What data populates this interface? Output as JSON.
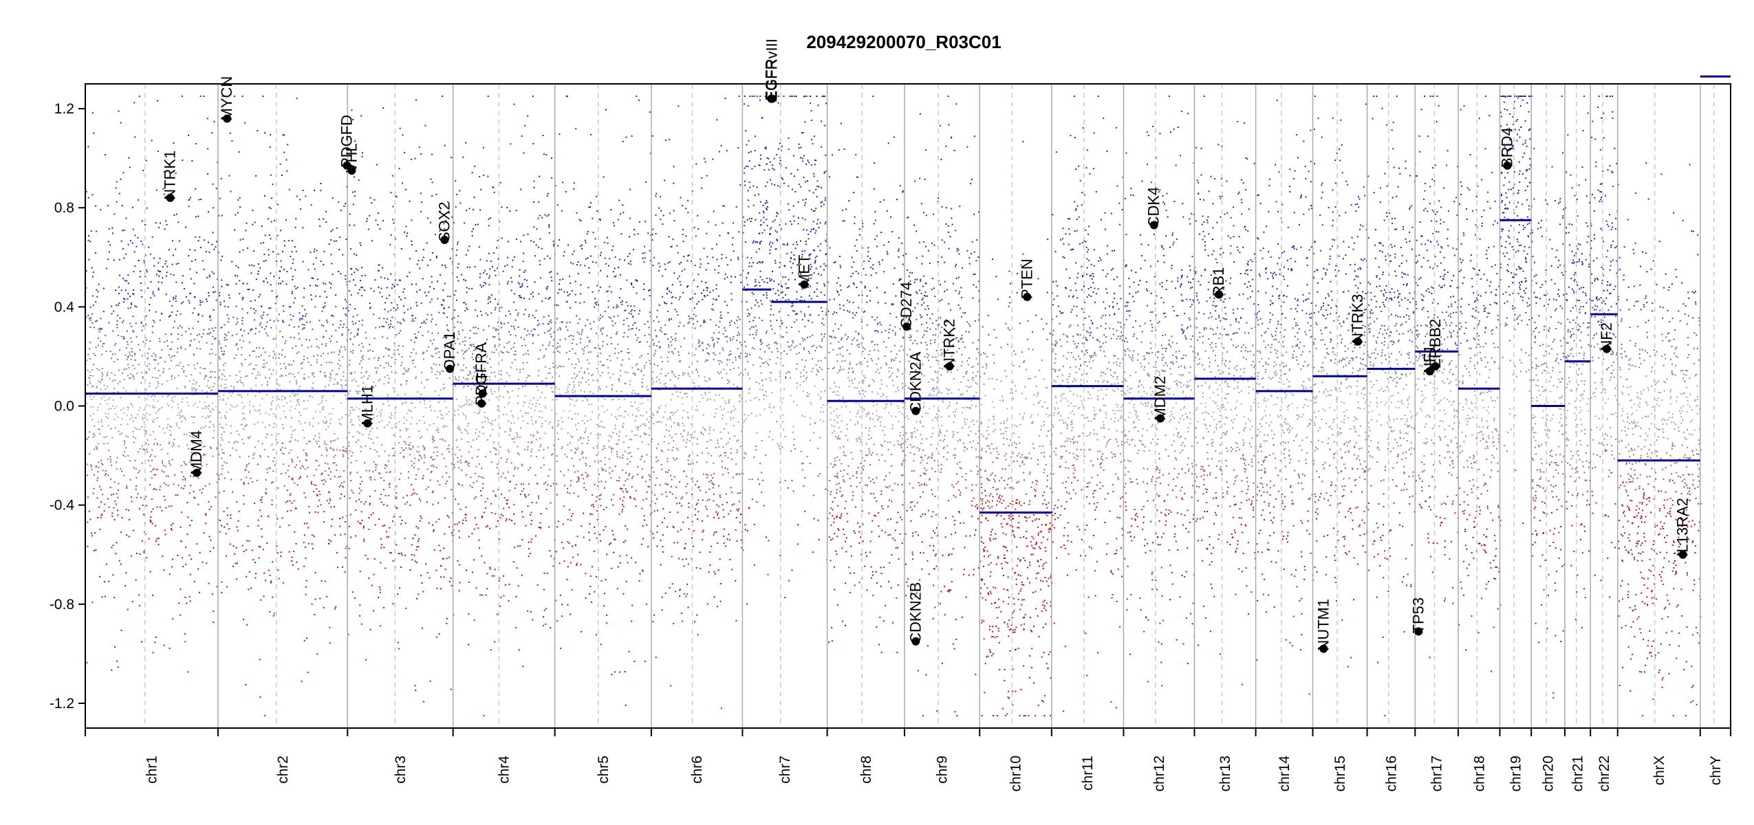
{
  "chart_data": {
    "type": "scatter",
    "title": "209429200070_R03C01",
    "xlabel": "",
    "ylabel": "",
    "ylim": [
      -1.3,
      1.3
    ],
    "y_ticks": [
      -1.2,
      -0.8,
      -0.4,
      0.0,
      0.4,
      0.8,
      1.2
    ],
    "y_tick_labels": [
      "-1.2",
      "-0.8",
      "-0.4",
      "0.0",
      "0.4",
      "0.8",
      "1.2"
    ],
    "grid": false,
    "colors": {
      "gain": "#1f2aa8",
      "neutral": "#b0b0b0",
      "loss": "#b01515",
      "segment": "#000099",
      "boundary": "#aaaaaa",
      "marker": "#000000"
    },
    "chromosomes": [
      {
        "name": "chr1",
        "len": 249,
        "segment": 0.05,
        "density": 1.0
      },
      {
        "name": "chr2",
        "len": 243,
        "segment": 0.06,
        "density": 1.0
      },
      {
        "name": "chr3",
        "len": 198,
        "segment": 0.03,
        "density": 1.0
      },
      {
        "name": "chr4",
        "len": 191,
        "segment": 0.09,
        "density": 1.0
      },
      {
        "name": "chr5",
        "len": 181,
        "segment": 0.04,
        "density": 1.0
      },
      {
        "name": "chr6",
        "len": 171,
        "segment": 0.07,
        "density": 1.0
      },
      {
        "name": "chr7",
        "len": 159,
        "segment": 0.42,
        "density": 1.0,
        "segments": [
          {
            "from": 0.0,
            "to": 0.34,
            "value": 0.47
          },
          {
            "from": 0.34,
            "to": 1.0,
            "value": 0.42
          }
        ]
      },
      {
        "name": "chr8",
        "len": 145,
        "segment": 0.02,
        "density": 1.0
      },
      {
        "name": "chr9",
        "len": 141,
        "segment": 0.03,
        "density": 1.0
      },
      {
        "name": "chr10",
        "len": 135,
        "segment": -0.43,
        "density": 1.0
      },
      {
        "name": "chr11",
        "len": 135,
        "segment": 0.08,
        "density": 1.0
      },
      {
        "name": "chr12",
        "len": 133,
        "segment": 0.03,
        "density": 1.0
      },
      {
        "name": "chr13",
        "len": 115,
        "segment": 0.11,
        "density": 1.0
      },
      {
        "name": "chr14",
        "len": 107,
        "segment": 0.06,
        "density": 1.0
      },
      {
        "name": "chr15",
        "len": 102,
        "segment": 0.12,
        "density": 1.0
      },
      {
        "name": "chr16",
        "len": 90,
        "segment": 0.15,
        "density": 1.0
      },
      {
        "name": "chr17",
        "len": 81,
        "segment": 0.22,
        "density": 1.0
      },
      {
        "name": "chr18",
        "len": 78,
        "segment": 0.07,
        "density": 1.0
      },
      {
        "name": "chr19",
        "len": 59,
        "segment": 0.75,
        "density": 1.0
      },
      {
        "name": "chr20",
        "len": 63,
        "segment": 0.0,
        "density": 1.0
      },
      {
        "name": "chr21",
        "len": 48,
        "segment": 0.18,
        "density": 1.0
      },
      {
        "name": "chr22",
        "len": 51,
        "segment": 0.37,
        "density": 1.0
      },
      {
        "name": "chrX",
        "len": 155,
        "segment": -0.22,
        "density": 1.0
      },
      {
        "name": "chrY",
        "len": 57,
        "segment": 1.33,
        "density": 0.0
      }
    ],
    "genes": [
      {
        "name": "NTRK1",
        "chr": "chr1",
        "pos": 0.64,
        "value": 0.84
      },
      {
        "name": "MDM4",
        "chr": "chr1",
        "pos": 0.84,
        "value": -0.27
      },
      {
        "name": "MYCN",
        "chr": "chr2",
        "pos": 0.07,
        "value": 1.16
      },
      {
        "name": "PDGFD",
        "chr": "chr2",
        "pos": 0.995,
        "value": 0.97
      },
      {
        "name": "VHL",
        "chr": "chr3",
        "pos": 0.04,
        "value": 0.95
      },
      {
        "name": "MLH1",
        "chr": "chr3",
        "pos": 0.19,
        "value": -0.07
      },
      {
        "name": "SOX2",
        "chr": "chr3",
        "pos": 0.92,
        "value": 0.67
      },
      {
        "name": "OPA1",
        "chr": "chr3",
        "pos": 0.97,
        "value": 0.15
      },
      {
        "name": "KIT",
        "chr": "chr4",
        "pos": 0.29,
        "value": 0.05
      },
      {
        "name": "PDGFRA",
        "chr": "chr4",
        "pos": 0.28,
        "value": 0.01
      },
      {
        "name": "EGFR",
        "chr": "chr7",
        "pos": 0.34,
        "value": 1.24
      },
      {
        "name": "EGFRvIII",
        "chr": "chr7",
        "pos": 0.35,
        "value": 1.24
      },
      {
        "name": "MET",
        "chr": "chr7",
        "pos": 0.73,
        "value": 0.49
      },
      {
        "name": "CD274",
        "chr": "chr9",
        "pos": 0.03,
        "value": 0.32
      },
      {
        "name": "CDKN2A",
        "chr": "chr9",
        "pos": 0.15,
        "value": -0.02
      },
      {
        "name": "CDKN2B",
        "chr": "chr9",
        "pos": 0.15,
        "value": -0.95
      },
      {
        "name": "NTRK2",
        "chr": "chr9",
        "pos": 0.6,
        "value": 0.16
      },
      {
        "name": "PTEN",
        "chr": "chr10",
        "pos": 0.66,
        "value": 0.44
      },
      {
        "name": "CDK4",
        "chr": "chr12",
        "pos": 0.43,
        "value": 0.73
      },
      {
        "name": "MDM2",
        "chr": "chr12",
        "pos": 0.52,
        "value": -0.05
      },
      {
        "name": "RB1",
        "chr": "chr13",
        "pos": 0.4,
        "value": 0.45
      },
      {
        "name": "NUTM1",
        "chr": "chr15",
        "pos": 0.2,
        "value": -0.98
      },
      {
        "name": "NTRK3",
        "chr": "chr15",
        "pos": 0.83,
        "value": 0.26
      },
      {
        "name": "TP53",
        "chr": "chr17",
        "pos": 0.08,
        "value": -0.91
      },
      {
        "name": "NF1",
        "chr": "chr17",
        "pos": 0.34,
        "value": 0.14
      },
      {
        "name": "ERBB2",
        "chr": "chr17",
        "pos": 0.47,
        "value": 0.16
      },
      {
        "name": "BRD4",
        "chr": "chr19",
        "pos": 0.24,
        "value": 0.97
      },
      {
        "name": "NF2",
        "chr": "chr22",
        "pos": 0.6,
        "value": 0.23
      },
      {
        "name": "IL13RA2",
        "chr": "chrX",
        "pos": 0.79,
        "value": -0.6
      }
    ]
  }
}
